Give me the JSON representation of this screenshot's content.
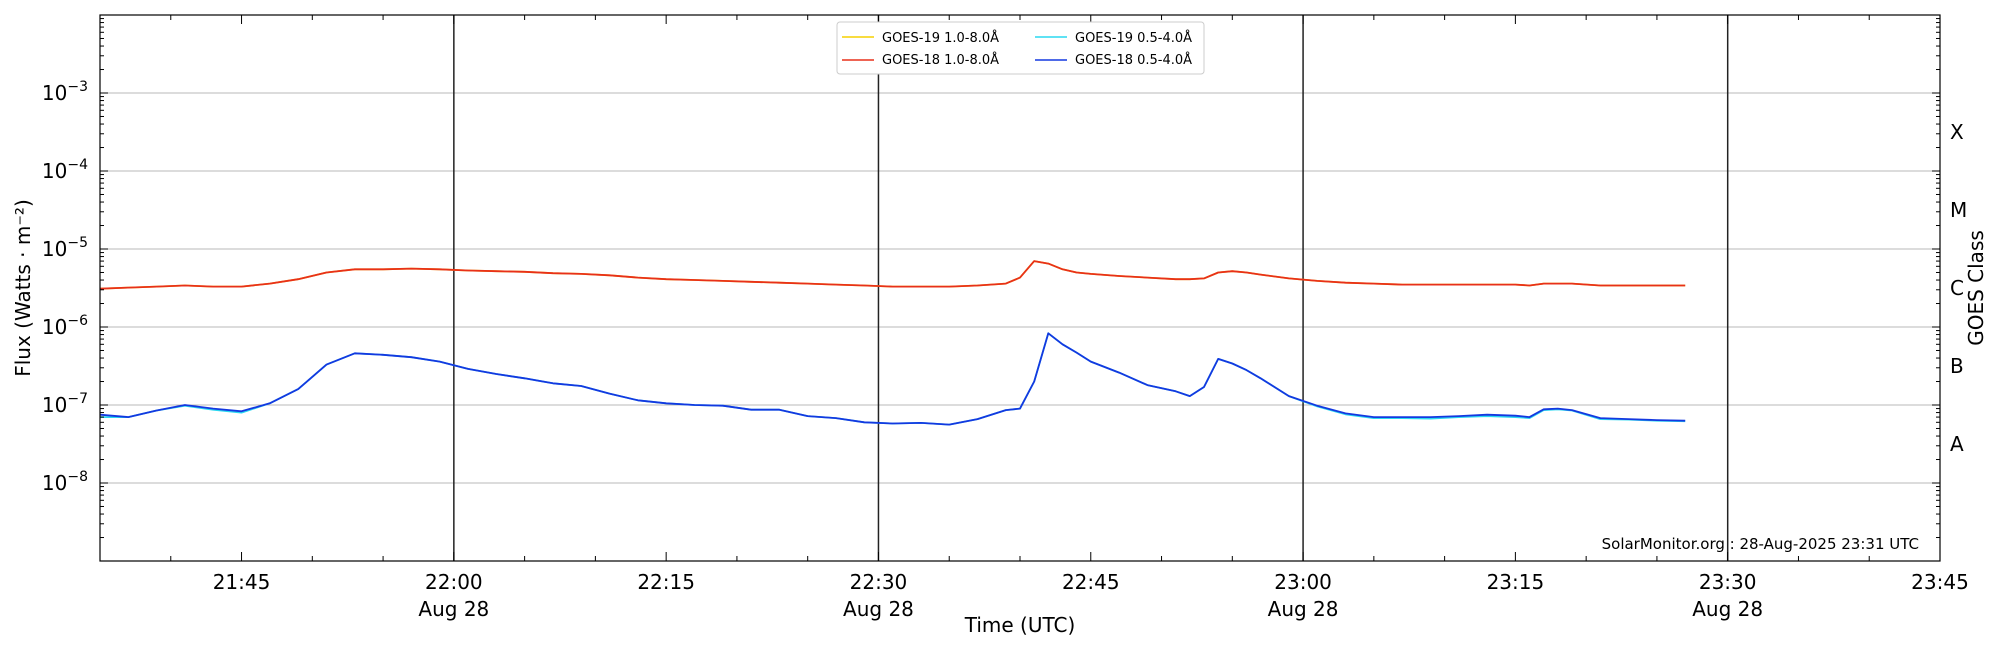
{
  "chart_data": {
    "type": "line",
    "xlabel": "Time (UTC)",
    "ylabel": "Flux (Watts · m⁻²)",
    "y2label": "GOES Class",
    "yscale": "log",
    "ylim": [
      1e-09,
      0.01
    ],
    "xlim": [
      "21:35",
      "23:45"
    ],
    "x_ticks": [
      {
        "time": "21:45",
        "date": ""
      },
      {
        "time": "22:00",
        "date": "Aug 28"
      },
      {
        "time": "22:15",
        "date": ""
      },
      {
        "time": "22:30",
        "date": "Aug 28"
      },
      {
        "time": "22:45",
        "date": ""
      },
      {
        "time": "23:00",
        "date": "Aug 28"
      },
      {
        "time": "23:15",
        "date": ""
      },
      {
        "time": "23:30",
        "date": "Aug 28"
      },
      {
        "time": "23:45",
        "date": ""
      }
    ],
    "y_ticks": [
      {
        "value": 1e-08,
        "base": "10",
        "exp": "−8"
      },
      {
        "value": 1e-07,
        "base": "10",
        "exp": "−7"
      },
      {
        "value": 1e-06,
        "base": "10",
        "exp": "−6"
      },
      {
        "value": 1e-05,
        "base": "10",
        "exp": "−5"
      },
      {
        "value": 0.0001,
        "base": "10",
        "exp": "−4"
      },
      {
        "value": 0.001,
        "base": "10",
        "exp": "−3"
      }
    ],
    "goes_classes": [
      {
        "label": "A",
        "value": 3.16e-08
      },
      {
        "label": "B",
        "value": 3.16e-07
      },
      {
        "label": "C",
        "value": 3.16e-06
      },
      {
        "label": "M",
        "value": 3.16e-05
      },
      {
        "label": "X",
        "value": 0.000316
      }
    ],
    "vertical_lines": [
      "22:00",
      "22:30",
      "23:00",
      "23:30"
    ],
    "grid": true,
    "legend_position": "top-center",
    "credit": "SolarMonitor.org : 28-Aug-2025 23:31 UTC",
    "x": [
      "21:35",
      "21:37",
      "21:39",
      "21:41",
      "21:43",
      "21:45",
      "21:47",
      "21:49",
      "21:51",
      "21:53",
      "21:55",
      "21:57",
      "21:59",
      "22:01",
      "22:03",
      "22:05",
      "22:07",
      "22:09",
      "22:11",
      "22:13",
      "22:15",
      "22:17",
      "22:19",
      "22:21",
      "22:23",
      "22:25",
      "22:27",
      "22:29",
      "22:31",
      "22:33",
      "22:35",
      "22:37",
      "22:39",
      "22:40",
      "22:41",
      "22:42",
      "22:43",
      "22:44",
      "22:45",
      "22:47",
      "22:49",
      "22:51",
      "22:52",
      "22:53",
      "22:54",
      "22:55",
      "22:56",
      "22:57",
      "22:59",
      "23:01",
      "23:03",
      "23:05",
      "23:07",
      "23:09",
      "23:11",
      "23:13",
      "23:15",
      "23:16",
      "23:17",
      "23:18",
      "23:19",
      "23:21",
      "23:23",
      "23:25",
      "23:27"
    ],
    "series": [
      {
        "name": "GOES-19 1.0-8.0Å",
        "color": "#f5d000",
        "values": [
          3.1e-06,
          3.2e-06,
          3.3e-06,
          3.4e-06,
          3.3e-06,
          3.3e-06,
          3.6e-06,
          4.1e-06,
          5e-06,
          5.5e-06,
          5.5e-06,
          5.6e-06,
          5.5e-06,
          5.3e-06,
          5.2e-06,
          5.1e-06,
          4.9e-06,
          4.8e-06,
          4.6e-06,
          4.3e-06,
          4.1e-06,
          4e-06,
          3.9e-06,
          3.8e-06,
          3.7e-06,
          3.6e-06,
          3.5e-06,
          3.4e-06,
          3.3e-06,
          3.3e-06,
          3.3e-06,
          3.4e-06,
          3.6e-06,
          4.3e-06,
          7e-06,
          6.5e-06,
          5.5e-06,
          5e-06,
          4.8e-06,
          4.5e-06,
          4.3e-06,
          4.1e-06,
          4.1e-06,
          4.2e-06,
          5e-06,
          5.2e-06,
          5e-06,
          4.7e-06,
          4.2e-06,
          3.9e-06,
          3.7e-06,
          3.6e-06,
          3.5e-06,
          3.5e-06,
          3.5e-06,
          3.5e-06,
          3.5e-06,
          3.4e-06,
          3.6e-06,
          3.6e-06,
          3.6e-06,
          3.4e-06,
          3.4e-06,
          3.4e-06,
          3.4e-06
        ]
      },
      {
        "name": "GOES-18 1.0-8.0Å",
        "color": "#e8301a",
        "values": [
          3.1e-06,
          3.2e-06,
          3.3e-06,
          3.4e-06,
          3.3e-06,
          3.3e-06,
          3.6e-06,
          4.1e-06,
          5e-06,
          5.5e-06,
          5.5e-06,
          5.6e-06,
          5.5e-06,
          5.3e-06,
          5.2e-06,
          5.1e-06,
          4.9e-06,
          4.8e-06,
          4.6e-06,
          4.3e-06,
          4.1e-06,
          4e-06,
          3.9e-06,
          3.8e-06,
          3.7e-06,
          3.6e-06,
          3.5e-06,
          3.4e-06,
          3.3e-06,
          3.3e-06,
          3.3e-06,
          3.4e-06,
          3.6e-06,
          4.3e-06,
          7e-06,
          6.5e-06,
          5.5e-06,
          5e-06,
          4.8e-06,
          4.5e-06,
          4.3e-06,
          4.1e-06,
          4.1e-06,
          4.2e-06,
          5e-06,
          5.2e-06,
          5e-06,
          4.7e-06,
          4.2e-06,
          3.9e-06,
          3.7e-06,
          3.6e-06,
          3.5e-06,
          3.5e-06,
          3.5e-06,
          3.5e-06,
          3.5e-06,
          3.4e-06,
          3.6e-06,
          3.6e-06,
          3.6e-06,
          3.4e-06,
          3.4e-06,
          3.4e-06,
          3.4e-06
        ]
      },
      {
        "name": "GOES-19 0.5-4.0Å",
        "color": "#2ad8f0",
        "values": [
          7e-08,
          7e-08,
          8.5e-08,
          9.8e-08,
          8.7e-08,
          8e-08,
          1.05e-07,
          1.6e-07,
          3.3e-07,
          4.6e-07,
          4.4e-07,
          4.1e-07,
          3.6e-07,
          2.9e-07,
          2.5e-07,
          2.2e-07,
          1.9e-07,
          1.75e-07,
          1.4e-07,
          1.15e-07,
          1.05e-07,
          1e-07,
          9.8e-08,
          8.7e-08,
          8.7e-08,
          7.2e-08,
          6.8e-08,
          6e-08,
          5.8e-08,
          5.9e-08,
          5.6e-08,
          6.6e-08,
          8.6e-08,
          9e-08,
          2e-07,
          8.3e-07,
          6e-07,
          4.7e-07,
          3.6e-07,
          2.6e-07,
          1.8e-07,
          1.5e-07,
          1.3e-07,
          1.7e-07,
          3.9e-07,
          3.4e-07,
          2.8e-07,
          2.2e-07,
          1.3e-07,
          9.6e-08,
          7.6e-08,
          6.8e-08,
          6.8e-08,
          6.7e-08,
          7e-08,
          7.2e-08,
          7e-08,
          6.8e-08,
          8.6e-08,
          8.8e-08,
          8.5e-08,
          6.6e-08,
          6.5e-08,
          6.3e-08,
          6.2e-08
        ]
      },
      {
        "name": "GOES-18 0.5-4.0Å",
        "color": "#1438e0",
        "values": [
          7.5e-08,
          7e-08,
          8.5e-08,
          1e-07,
          9e-08,
          8.3e-08,
          1.05e-07,
          1.6e-07,
          3.3e-07,
          4.6e-07,
          4.4e-07,
          4.1e-07,
          3.6e-07,
          2.9e-07,
          2.5e-07,
          2.2e-07,
          1.9e-07,
          1.75e-07,
          1.4e-07,
          1.15e-07,
          1.05e-07,
          1e-07,
          9.8e-08,
          8.7e-08,
          8.7e-08,
          7.2e-08,
          6.8e-08,
          6e-08,
          5.8e-08,
          5.9e-08,
          5.6e-08,
          6.6e-08,
          8.6e-08,
          9e-08,
          2e-07,
          8.3e-07,
          6e-07,
          4.7e-07,
          3.6e-07,
          2.6e-07,
          1.8e-07,
          1.5e-07,
          1.3e-07,
          1.7e-07,
          3.9e-07,
          3.4e-07,
          2.8e-07,
          2.2e-07,
          1.3e-07,
          9.8e-08,
          7.8e-08,
          7e-08,
          7e-08,
          7e-08,
          7.2e-08,
          7.5e-08,
          7.3e-08,
          7e-08,
          8.8e-08,
          9e-08,
          8.6e-08,
          6.8e-08,
          6.6e-08,
          6.4e-08,
          6.3e-08
        ]
      }
    ]
  }
}
